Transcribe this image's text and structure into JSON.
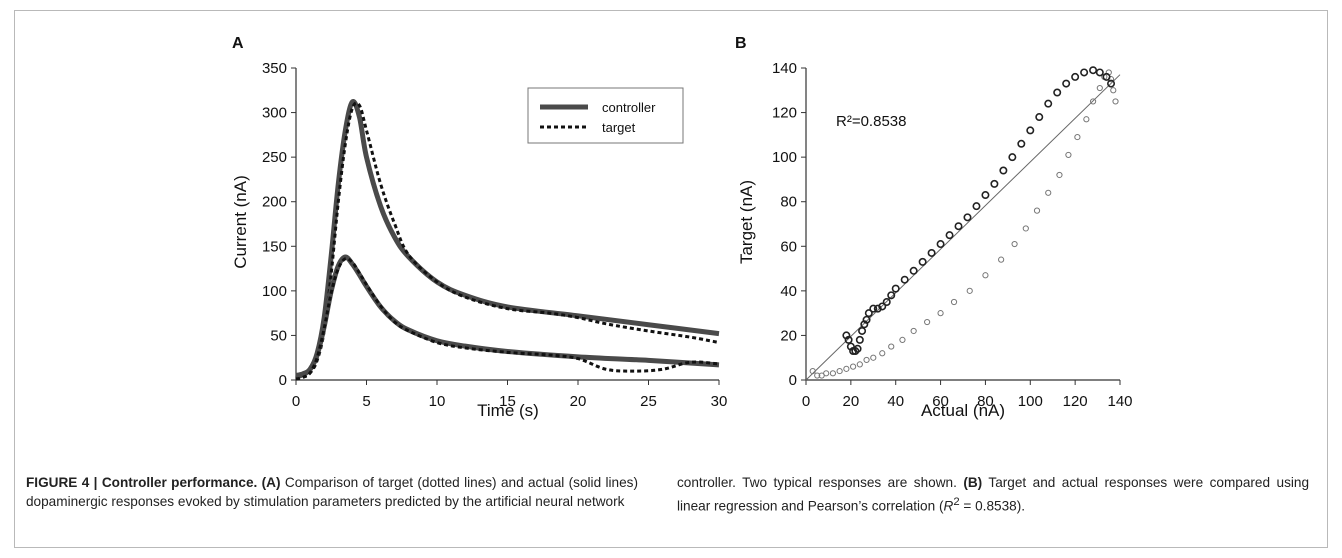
{
  "chart_data": [
    {
      "panel": "A",
      "type": "line",
      "xlabel": "Time (s)",
      "ylabel": "Current (nA)",
      "xlim": [
        0,
        30
      ],
      "ylim": [
        0,
        350
      ],
      "xticks": [
        "0",
        "5",
        "10",
        "15",
        "20",
        "25",
        "30"
      ],
      "yticks": [
        "0",
        "50",
        "100",
        "150",
        "200",
        "250",
        "300",
        "350"
      ],
      "legend_position": "top-right",
      "legend": [
        "controller",
        "target"
      ],
      "series": [
        {
          "name": "controller",
          "style": "solid",
          "color": "#4a4a4a",
          "x": [
            0,
            0.5,
            1,
            1.5,
            2,
            2.5,
            3,
            3.5,
            4,
            4.5,
            5,
            6,
            7,
            8,
            10,
            12,
            15,
            20,
            25,
            30
          ],
          "y": [
            5,
            7,
            12,
            30,
            70,
            140,
            220,
            280,
            312,
            295,
            250,
            195,
            160,
            138,
            110,
            95,
            82,
            72,
            62,
            52
          ]
        },
        {
          "name": "target",
          "style": "dotted",
          "color": "#111111",
          "x": [
            0,
            0.5,
            1,
            1.5,
            2,
            2.5,
            3,
            3.5,
            4,
            4.5,
            5,
            6,
            7,
            8,
            10,
            12,
            15,
            18,
            20,
            22,
            25,
            28,
            30
          ],
          "y": [
            2,
            4,
            8,
            22,
            55,
            120,
            200,
            265,
            305,
            308,
            280,
            220,
            175,
            140,
            110,
            93,
            80,
            75,
            70,
            63,
            55,
            48,
            42
          ]
        },
        {
          "name": "controller",
          "style": "solid",
          "color": "#4a4a4a",
          "x": [
            0,
            0.5,
            1,
            1.5,
            2,
            2.5,
            3,
            3.5,
            4,
            4.5,
            5,
            6,
            7,
            8,
            10,
            12,
            15,
            20,
            25,
            30
          ],
          "y": [
            4,
            6,
            12,
            28,
            60,
            100,
            128,
            138,
            130,
            118,
            105,
            82,
            66,
            56,
            44,
            38,
            32,
            26,
            22,
            17
          ]
        },
        {
          "name": "target",
          "style": "dotted",
          "color": "#111111",
          "x": [
            0,
            0.5,
            1,
            1.5,
            2,
            2.5,
            3,
            3.5,
            4,
            4.5,
            5,
            6,
            7,
            8,
            10,
            12,
            15,
            18,
            20,
            22,
            24,
            26,
            28,
            30
          ],
          "y": [
            1,
            3,
            8,
            25,
            58,
            98,
            125,
            136,
            132,
            120,
            107,
            83,
            65,
            55,
            42,
            36,
            31,
            28,
            24,
            12,
            10,
            12,
            20,
            18
          ]
        }
      ]
    },
    {
      "panel": "B",
      "type": "scatter",
      "xlabel": "Actual (nA)",
      "ylabel": "Target (nA)",
      "xlim": [
        0,
        140
      ],
      "ylim": [
        0,
        140
      ],
      "xticks": [
        "0",
        "20",
        "40",
        "60",
        "80",
        "100",
        "120",
        "140"
      ],
      "yticks": [
        "0",
        "20",
        "40",
        "60",
        "80",
        "100",
        "120",
        "140"
      ],
      "annotation": "R²=0.8538",
      "regression_line": {
        "x": [
          0,
          140
        ],
        "y": [
          0,
          137
        ]
      },
      "series": [
        {
          "marker": "open-circle",
          "x": [
            3,
            5,
            7,
            9,
            12,
            15,
            18,
            21,
            24,
            27,
            30,
            34,
            38,
            43,
            48,
            54,
            60,
            66,
            73,
            80,
            87,
            93,
            98,
            103,
            108,
            113,
            117,
            121,
            125,
            128,
            131,
            133,
            135,
            136,
            137,
            138
          ],
          "y": [
            4,
            2,
            2,
            3,
            3,
            4,
            5,
            6,
            7,
            9,
            10,
            12,
            15,
            18,
            22,
            26,
            30,
            35,
            40,
            47,
            54,
            61,
            68,
            76,
            84,
            92,
            101,
            109,
            117,
            125,
            131,
            136,
            138,
            135,
            130,
            125
          ]
        },
        {
          "marker": "open-circle-dense",
          "x": [
            18,
            19,
            20,
            21,
            22,
            23,
            24,
            25,
            26,
            27,
            28,
            30,
            32,
            34,
            36,
            38,
            40,
            44,
            48,
            52,
            56,
            60,
            64,
            68,
            72,
            76,
            80,
            84,
            88,
            92,
            96,
            100,
            104,
            108,
            112,
            116,
            120,
            124,
            128,
            131,
            134,
            136
          ],
          "y": [
            20,
            18,
            15,
            13,
            13,
            14,
            18,
            22,
            25,
            27,
            30,
            32,
            32,
            33,
            35,
            38,
            41,
            45,
            49,
            53,
            57,
            61,
            65,
            69,
            73,
            78,
            83,
            88,
            94,
            100,
            106,
            112,
            118,
            124,
            129,
            133,
            136,
            138,
            139,
            138,
            136,
            133
          ]
        }
      ]
    }
  ],
  "labels": {
    "panel_a": "A",
    "panel_b": "B"
  },
  "caption": {
    "fig": "FIGURE 4 | Controller performance.",
    "a_ref": "(A)",
    "a_text": " Comparison of target (dotted lines) and actual (solid lines) dopaminergic responses evoked by stimulation parameters predicted by the artificial neural network",
    "b_text_1": "controller. Two typical responses are shown. ",
    "b_ref": "(B)",
    "b_text_2": " Target and actual responses were compared using linear regression and Pearson’s correlation (",
    "r_label": "R",
    "r_exp": "2",
    "r_value": " = 0.8538)."
  }
}
